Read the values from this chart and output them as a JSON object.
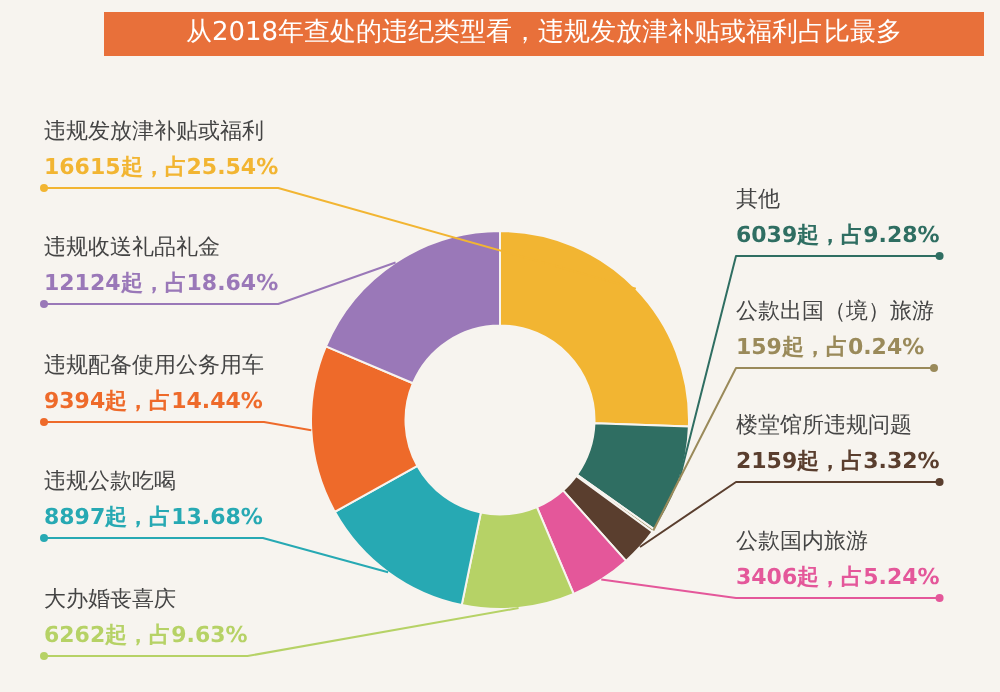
{
  "chart_data": {
    "type": "donut",
    "title": "从2018年查处的违纪类型看，违规发放津补贴或福利占比最多",
    "categories": [
      "违规发放津补贴或福利",
      "其他",
      "公款出国（境）旅游",
      "楼堂馆所违规问题",
      "公款国内旅游",
      "大办婚丧喜庆",
      "违规公款吃喝",
      "违规配备使用公务用车",
      "违规收送礼品礼金"
    ],
    "values": [
      16615,
      6039,
      159,
      2159,
      3406,
      6262,
      8897,
      9394,
      12124
    ],
    "value_labels": [
      "16615起，占25.54%",
      "6039起，占9.28%",
      "159起，占0.24%",
      "2159起，占3.32%",
      "3406起，占5.24%",
      "6262起，占9.63%",
      "8897起，占13.68%",
      "9394起，占14.44%",
      "12124起，占18.64%"
    ],
    "colors": [
      "#f2b532",
      "#2f6e62",
      "#9a8a5a",
      "#5a3e2e",
      "#e4579a",
      "#b6d266",
      "#27a9b3",
      "#ee6a2a",
      "#9a78b8"
    ],
    "legend": false
  }
}
